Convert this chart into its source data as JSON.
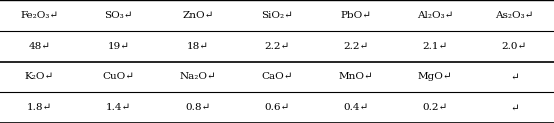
{
  "row1_headers": [
    "Fe₂O₃↵",
    "SO₃↵",
    "ZnO↵",
    "SiO₂↵",
    "PbO↵",
    "Al₂O₃↵",
    "As₂O₃↵"
  ],
  "row1_values": [
    "48↵",
    "19↵",
    "18↵",
    "2.2↵",
    "2.2↵",
    "2.1↵",
    "2.0↵"
  ],
  "row2_headers": [
    "K₂O↵",
    "CuO↵",
    "Na₂O↵",
    "CaO↵",
    "MnO↵",
    "MgO↵",
    "↵"
  ],
  "row2_values": [
    "1.8↵",
    "1.4↵",
    "0.8↵",
    "0.6↵",
    "0.4↵",
    "0.2↵",
    "↵"
  ],
  "figsize": [
    5.54,
    1.23
  ],
  "dpi": 100,
  "fontsize": 7.5,
  "line_color": "black",
  "bg_color": "white"
}
